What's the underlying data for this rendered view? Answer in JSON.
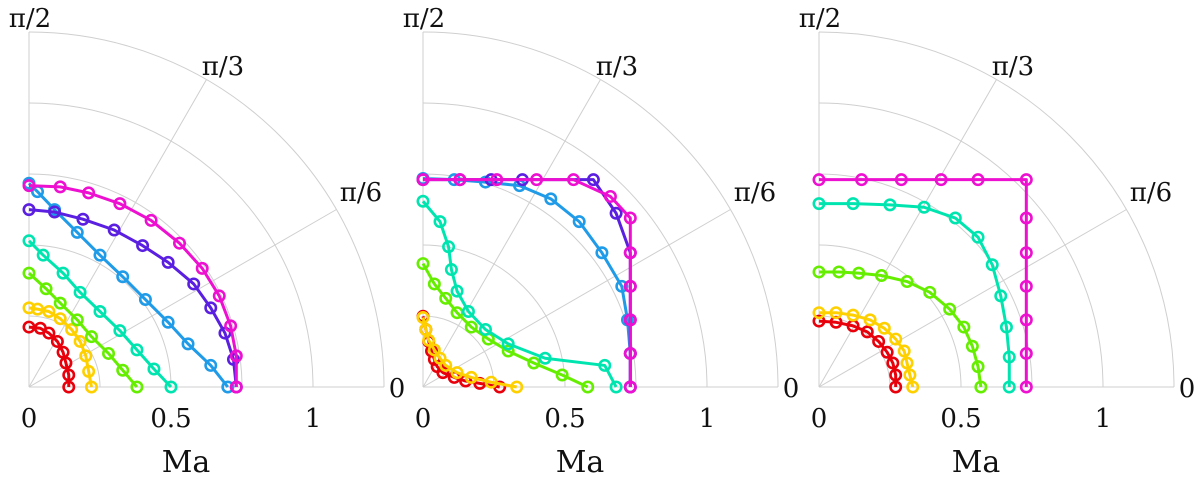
{
  "chart_data": [
    {
      "type": "polar-line",
      "xlabel": "Ma",
      "rlim": [
        0,
        1.25
      ],
      "radial_ticks": [
        "0",
        "0.5",
        "1"
      ],
      "angle_ticks": [
        "0",
        "π/6",
        "π/3",
        "π/2"
      ],
      "series": [
        {
          "color": "#e8000b",
          "ma": 0.14,
          "pts": [
            [
              0.14,
              0.0
            ],
            [
              0.14,
              0.1
            ],
            [
              0.13,
              0.2
            ],
            [
              0.12,
              0.29
            ],
            [
              0.1,
              0.38
            ],
            [
              0.07,
              0.45
            ],
            [
              0.04,
              0.49
            ],
            [
              0.0,
              0.5
            ]
          ]
        },
        {
          "color": "#ffd000",
          "ma": 0.22,
          "pts": [
            [
              0.22,
              0.0
            ],
            [
              0.21,
              0.13
            ],
            [
              0.2,
              0.26
            ],
            [
              0.18,
              0.38
            ],
            [
              0.15,
              0.48
            ],
            [
              0.11,
              0.57
            ],
            [
              0.07,
              0.63
            ],
            [
              0.03,
              0.65
            ],
            [
              0.0,
              0.66
            ]
          ]
        },
        {
          "color": "#66ee00",
          "ma": 0.38,
          "pts": [
            [
              0.38,
              0.0
            ],
            [
              0.33,
              0.14
            ],
            [
              0.28,
              0.28
            ],
            [
              0.22,
              0.42
            ],
            [
              0.17,
              0.56
            ],
            [
              0.11,
              0.7
            ],
            [
              0.06,
              0.82
            ],
            [
              0.0,
              0.95
            ]
          ]
        },
        {
          "color": "#00e5b0",
          "ma": 0.5,
          "pts": [
            [
              0.5,
              0.0
            ],
            [
              0.44,
              0.15
            ],
            [
              0.38,
              0.31
            ],
            [
              0.32,
              0.47
            ],
            [
              0.25,
              0.63
            ],
            [
              0.18,
              0.79
            ],
            [
              0.12,
              0.95
            ],
            [
              0.05,
              1.1
            ],
            [
              0.0,
              1.22
            ]
          ]
        },
        {
          "color": "#1f9be8",
          "ma": 0.7,
          "pts": [
            [
              0.7,
              0.0
            ],
            [
              0.64,
              0.18
            ],
            [
              0.56,
              0.36
            ],
            [
              0.49,
              0.54
            ],
            [
              0.41,
              0.73
            ],
            [
              0.33,
              0.92
            ],
            [
              0.25,
              1.1
            ],
            [
              0.17,
              1.29
            ],
            [
              0.09,
              1.48
            ],
            [
              0.03,
              1.63
            ],
            [
              0.0,
              1.7
            ]
          ]
        },
        {
          "color": "#5a1fe0",
          "ma": 0.73,
          "pts": [
            [
              0.73,
              0.0
            ],
            [
              0.72,
              0.23
            ],
            [
              0.69,
              0.45
            ],
            [
              0.64,
              0.66
            ],
            [
              0.58,
              0.86
            ],
            [
              0.49,
              1.04
            ],
            [
              0.4,
              1.18
            ],
            [
              0.3,
              1.31
            ],
            [
              0.19,
              1.4
            ],
            [
              0.09,
              1.46
            ],
            [
              0.0,
              1.48
            ]
          ]
        },
        {
          "color": "#ee10d0",
          "ma": 0.73,
          "pts": [
            [
              0.73,
              0.0
            ],
            [
              0.73,
              0.26
            ],
            [
              0.71,
              0.51
            ],
            [
              0.67,
              0.76
            ],
            [
              0.61,
              0.99
            ],
            [
              0.53,
              1.2
            ],
            [
              0.43,
              1.39
            ],
            [
              0.32,
              1.53
            ],
            [
              0.21,
              1.62
            ],
            [
              0.11,
              1.67
            ],
            [
              0.0,
              1.68
            ]
          ]
        }
      ]
    },
    {
      "type": "polar-line",
      "xlabel": "Ma",
      "rlim": [
        0,
        1.25
      ],
      "radial_ticks": [
        "0",
        "0.5",
        "1"
      ],
      "angle_ticks": [
        "0",
        "π/6",
        "π/3",
        "π/2"
      ],
      "series": [
        {
          "color": "#e8000b",
          "ma": 0.27,
          "pts": [
            [
              0.27,
              0.0
            ],
            [
              0.2,
              0.03
            ],
            [
              0.15,
              0.05
            ],
            [
              0.11,
              0.08
            ],
            [
              0.07,
              0.12
            ],
            [
              0.05,
              0.17
            ],
            [
              0.04,
              0.23
            ],
            [
              0.03,
              0.3
            ],
            [
              0.02,
              0.38
            ],
            [
              0.01,
              0.48
            ],
            [
              0.0,
              0.59
            ]
          ]
        },
        {
          "color": "#ffd000",
          "ma": 0.33,
          "pts": [
            [
              0.33,
              0.0
            ],
            [
              0.24,
              0.04
            ],
            [
              0.17,
              0.08
            ],
            [
              0.12,
              0.12
            ],
            [
              0.08,
              0.18
            ],
            [
              0.06,
              0.24
            ],
            [
              0.04,
              0.31
            ],
            [
              0.02,
              0.39
            ],
            [
              0.01,
              0.48
            ],
            [
              0.0,
              0.58
            ]
          ]
        },
        {
          "color": "#66ee00",
          "ma": 0.58,
          "pts": [
            [
              0.58,
              0.0
            ],
            [
              0.49,
              0.1
            ],
            [
              0.39,
              0.2
            ],
            [
              0.3,
              0.3
            ],
            [
              0.23,
              0.4
            ],
            [
              0.17,
              0.5
            ],
            [
              0.12,
              0.62
            ],
            [
              0.08,
              0.74
            ],
            [
              0.04,
              0.86
            ],
            [
              0.0,
              1.03
            ]
          ]
        },
        {
          "color": "#00e5b0",
          "ma": 0.68,
          "pts": [
            [
              0.68,
              0.0
            ],
            [
              0.64,
              0.18
            ],
            [
              0.43,
              0.24
            ],
            [
              0.3,
              0.36
            ],
            [
              0.22,
              0.48
            ],
            [
              0.16,
              0.63
            ],
            [
              0.12,
              0.8
            ],
            [
              0.1,
              0.98
            ],
            [
              0.09,
              1.17
            ],
            [
              0.06,
              1.38
            ],
            [
              0.0,
              1.55
            ]
          ]
        },
        {
          "color": "#1f9be8",
          "ma": 0.73,
          "pts": [
            [
              0.73,
              0.0
            ],
            [
              0.73,
              0.28
            ],
            [
              0.72,
              0.56
            ],
            [
              0.7,
              0.84
            ],
            [
              0.63,
              1.12
            ],
            [
              0.55,
              1.38
            ],
            [
              0.45,
              1.57
            ],
            [
              0.34,
              1.68
            ],
            [
              0.22,
              1.71
            ],
            [
              0.11,
              1.73
            ],
            [
              0.0,
              1.74
            ]
          ]
        },
        {
          "color": "#5a1fe0",
          "ma": 0.73,
          "pts": [
            [
              0.73,
              0.0
            ],
            [
              0.73,
              0.28
            ],
            [
              0.73,
              0.56
            ],
            [
              0.73,
              0.84
            ],
            [
              0.73,
              1.12
            ],
            [
              0.68,
              1.45
            ],
            [
              0.6,
              1.73
            ],
            [
              0.35,
              1.73
            ],
            [
              0.24,
              1.73
            ],
            [
              0.13,
              1.73
            ],
            [
              0.0,
              1.73
            ]
          ]
        },
        {
          "color": "#ee10d0",
          "ma": 0.73,
          "pts": [
            [
              0.73,
              0.0
            ],
            [
              0.73,
              0.28
            ],
            [
              0.73,
              0.56
            ],
            [
              0.73,
              0.84
            ],
            [
              0.73,
              1.12
            ],
            [
              0.73,
              1.41
            ],
            [
              0.66,
              1.59
            ],
            [
              0.53,
              1.73
            ],
            [
              0.4,
              1.73
            ],
            [
              0.26,
              1.73
            ],
            [
              0.13,
              1.73
            ],
            [
              0.0,
              1.73
            ]
          ]
        }
      ]
    },
    {
      "type": "polar-line",
      "xlabel": "Ma",
      "rlim": [
        0,
        1.25
      ],
      "radial_ticks": [
        "0",
        "0.5",
        "1"
      ],
      "angle_ticks": [
        "0",
        "π/6",
        "π/3",
        "π/2"
      ],
      "series": [
        {
          "color": "#e8000b",
          "ma": 0.27,
          "pts": [
            [
              0.27,
              0.0
            ],
            [
              0.27,
              0.1
            ],
            [
              0.26,
              0.2
            ],
            [
              0.24,
              0.29
            ],
            [
              0.21,
              0.38
            ],
            [
              0.17,
              0.46
            ],
            [
              0.12,
              0.51
            ],
            [
              0.06,
              0.54
            ],
            [
              0.0,
              0.55
            ]
          ]
        },
        {
          "color": "#ffd000",
          "ma": 0.33,
          "pts": [
            [
              0.33,
              0.0
            ],
            [
              0.32,
              0.1
            ],
            [
              0.31,
              0.2
            ],
            [
              0.3,
              0.3
            ],
            [
              0.27,
              0.4
            ],
            [
              0.23,
              0.49
            ],
            [
              0.18,
              0.56
            ],
            [
              0.12,
              0.6
            ],
            [
              0.06,
              0.62
            ],
            [
              0.0,
              0.62
            ]
          ]
        },
        {
          "color": "#66ee00",
          "ma": 0.57,
          "pts": [
            [
              0.57,
              0.0
            ],
            [
              0.56,
              0.17
            ],
            [
              0.54,
              0.34
            ],
            [
              0.51,
              0.5
            ],
            [
              0.46,
              0.65
            ],
            [
              0.39,
              0.79
            ],
            [
              0.31,
              0.88
            ],
            [
              0.22,
              0.93
            ],
            [
              0.14,
              0.95
            ],
            [
              0.07,
              0.96
            ],
            [
              0.0,
              0.96
            ]
          ]
        },
        {
          "color": "#00e5b0",
          "ma": 0.67,
          "pts": [
            [
              0.67,
              0.0
            ],
            [
              0.67,
              0.25
            ],
            [
              0.66,
              0.5
            ],
            [
              0.64,
              0.76
            ],
            [
              0.61,
              1.02
            ],
            [
              0.56,
              1.25
            ],
            [
              0.48,
              1.41
            ],
            [
              0.37,
              1.5
            ],
            [
              0.25,
              1.52
            ],
            [
              0.12,
              1.53
            ],
            [
              0.0,
              1.53
            ]
          ]
        },
        {
          "color": "#ee10d0",
          "ma": 0.73,
          "pts": [
            [
              0.73,
              0.0
            ],
            [
              0.73,
              0.28
            ],
            [
              0.73,
              0.56
            ],
            [
              0.73,
              0.84
            ],
            [
              0.73,
              1.12
            ],
            [
              0.73,
              1.41
            ],
            [
              0.73,
              1.73
            ],
            [
              0.56,
              1.73
            ],
            [
              0.43,
              1.73
            ],
            [
              0.29,
              1.73
            ],
            [
              0.15,
              1.73
            ],
            [
              0.0,
              1.73
            ]
          ]
        }
      ]
    }
  ]
}
